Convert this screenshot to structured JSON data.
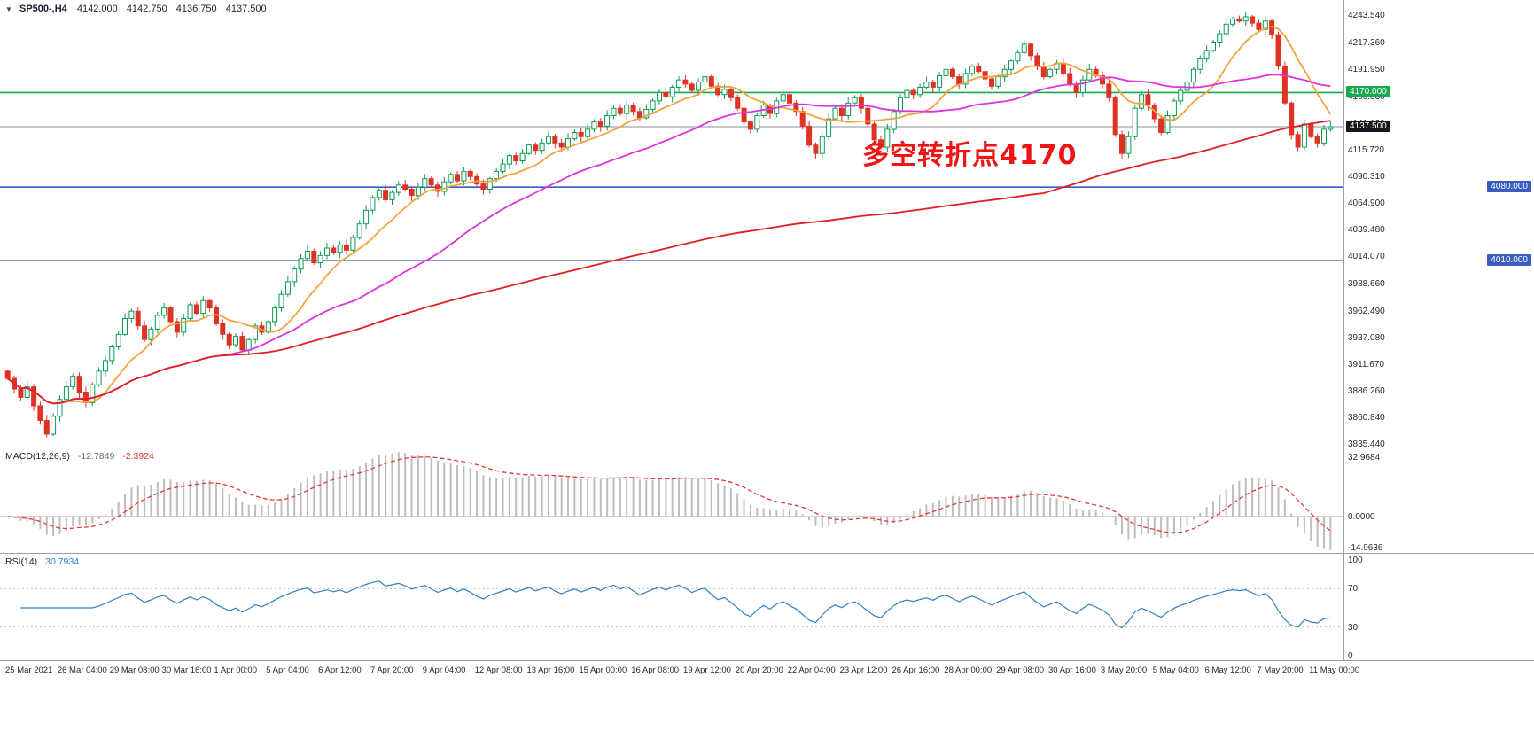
{
  "header": {
    "symbol_timeframe": "SP500-,H4",
    "open": "4142.000",
    "high": "4142.750",
    "low": "4136.750",
    "close": "4137.500"
  },
  "annotation": {
    "text": "多空转折点4170",
    "color": "#f01414"
  },
  "macd": {
    "title": "MACD(12,26,9)",
    "value_main": "-12.7849",
    "value_signal": "-2.3924",
    "axis_labels": [
      "32.9684",
      "0.0000",
      "-14.9636"
    ],
    "params": {
      "fast": 12,
      "slow": 26,
      "signal": 9
    }
  },
  "rsi": {
    "title": "RSI(14)",
    "value": "30.7934",
    "period": 14,
    "axis_labels": [
      "100",
      "70",
      "30",
      "0"
    ],
    "levels": [
      70,
      30
    ]
  },
  "chart_data": {
    "type": "candlestick",
    "symbol": "SP500-",
    "timeframe": "H4",
    "ylim": [
      3834,
      4258
    ],
    "price_axis_labels": [
      "4243.540",
      "4217.360",
      "4191.950",
      "4166.530",
      "4141.120",
      "4115.720",
      "4090.310",
      "4064.900",
      "4039.480",
      "4014.070",
      "3988.660",
      "3962.490",
      "3937.080",
      "3911.670",
      "3886.260",
      "3860.840",
      "3835.440"
    ],
    "time_axis_labels": [
      "25 Mar 2021",
      "26 Mar 04:00",
      "29 Mar 08:00",
      "30 Mar 16:00",
      "1 Apr 00:00",
      "5 Apr 04:00",
      "6 Apr 12:00",
      "7 Apr 20:00",
      "9 Apr 04:00",
      "12 Apr 08:00",
      "13 Apr 16:00",
      "15 Apr 00:00",
      "16 Apr 08:00",
      "19 Apr 12:00",
      "20 Apr 20:00",
      "22 Apr 04:00",
      "23 Apr 12:00",
      "26 Apr 16:00",
      "28 Apr 00:00",
      "29 Apr 08:00",
      "30 Apr 16:00",
      "3 May 20:00",
      "5 May 04:00",
      "6 May 12:00",
      "7 May 20:00",
      "11 May 00:00"
    ],
    "open_first": 3905,
    "closes": [
      3898,
      3888,
      3880,
      3890,
      3872,
      3858,
      3845,
      3862,
      3878,
      3890,
      3900,
      3885,
      3875,
      3892,
      3905,
      3915,
      3928,
      3940,
      3955,
      3962,
      3948,
      3935,
      3945,
      3958,
      3965,
      3952,
      3942,
      3955,
      3968,
      3960,
      3972,
      3965,
      3950,
      3940,
      3930,
      3938,
      3925,
      3935,
      3948,
      3942,
      3952,
      3965,
      3978,
      3990,
      4002,
      4012,
      4019,
      4008,
      4015,
      4022,
      4018,
      4025,
      4020,
      4032,
      4045,
      4058,
      4070,
      4077,
      4068,
      4075,
      4082,
      4078,
      4072,
      4080,
      4088,
      4082,
      4076,
      4085,
      4092,
      4086,
      4095,
      4090,
      4083,
      4078,
      4088,
      4095,
      4102,
      4110,
      4105,
      4112,
      4120,
      4115,
      4122,
      4128,
      4122,
      4118,
      4126,
      4132,
      4128,
      4135,
      4142,
      4138,
      4148,
      4155,
      4150,
      4158,
      4152,
      4146,
      4154,
      4162,
      4170,
      4166,
      4175,
      4182,
      4178,
      4172,
      4180,
      4185,
      4176,
      4168,
      4173,
      4165,
      4155,
      4142,
      4135,
      4148,
      4158,
      4150,
      4162,
      4168,
      4160,
      4152,
      4138,
      4120,
      4112,
      4128,
      4145,
      4155,
      4148,
      4160,
      4165,
      4155,
      4140,
      4125,
      4118,
      4135,
      4152,
      4165,
      4172,
      4168,
      4175,
      4180,
      4175,
      4186,
      4192,
      4185,
      4178,
      4188,
      4195,
      4190,
      4183,
      4176,
      4185,
      4192,
      4200,
      4208,
      4216,
      4205,
      4195,
      4185,
      4192,
      4198,
      4188,
      4178,
      4170,
      4182,
      4192,
      4186,
      4178,
      4165,
      4130,
      4112,
      4128,
      4155,
      4168,
      4158,
      4145,
      4132,
      4148,
      4162,
      4172,
      4180,
      4192,
      4202,
      4210,
      4218,
      4226,
      4235,
      4240,
      4238,
      4242,
      4236,
      4230,
      4238,
      4225,
      4195,
      4160,
      4130,
      4118,
      4140,
      4128,
      4122,
      4135,
      4137.5
    ],
    "levels": [
      {
        "label": "4170.000",
        "value": 4170,
        "color": "#18a94f",
        "badge_side": "axis"
      },
      {
        "label": "4080.000",
        "value": 4080,
        "color": "#3b5bc4",
        "badge_side": "right"
      },
      {
        "label": "4010.000",
        "value": 4010,
        "color": "#3b5bc4",
        "badge_side": "right"
      }
    ],
    "current_price": {
      "label": "4137.500",
      "value": 4137.5,
      "color": "#15181d"
    },
    "moving_averages": [
      {
        "period": 10,
        "color": "#f2a33c"
      },
      {
        "period": 34,
        "color": "#dd33dd"
      },
      {
        "period": 160,
        "color": "#e02020"
      }
    ],
    "colors": {
      "up": "#0a9a52",
      "down": "#e03224",
      "macd_hist": "#bdbdbd",
      "macd_signal": "#e53935",
      "rsi_line": "#2f80c4",
      "current_line": "#8a909a",
      "separator": "#9aa0a6"
    }
  }
}
